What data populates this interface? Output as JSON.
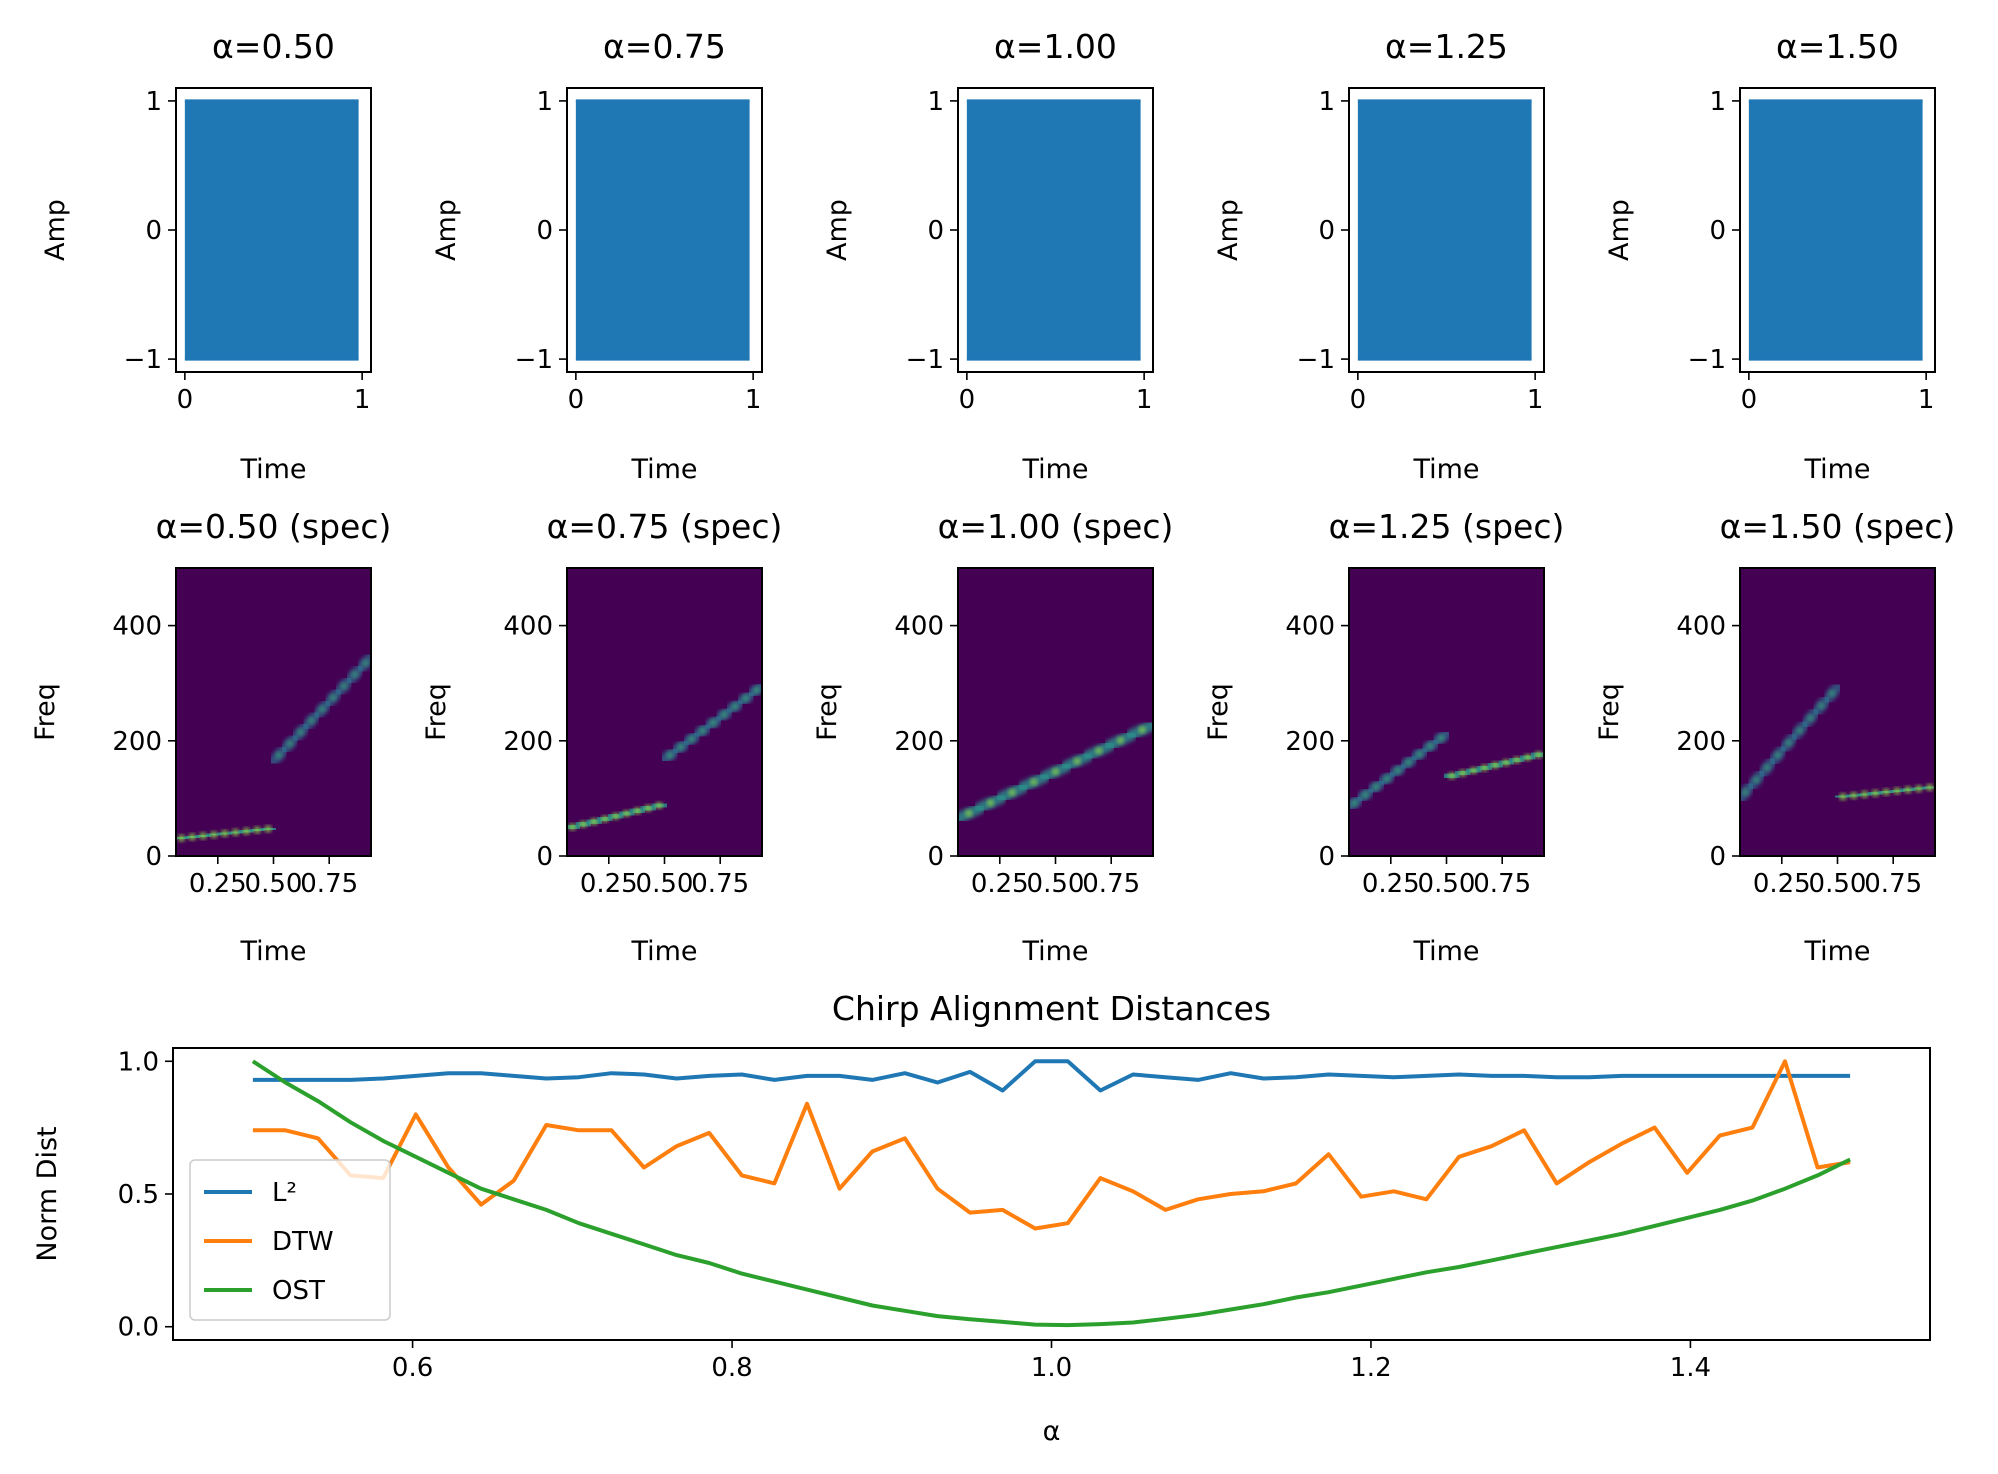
{
  "colors": {
    "l2": "#1f77b4",
    "dtw": "#ff7f0e",
    "ost": "#2ca02c",
    "signal": "#1f77b4",
    "spec_bg": "#440154"
  },
  "chart_data": [
    {
      "type": "area",
      "panel": "signal",
      "title": "α=0.50",
      "xlabel": "Time",
      "ylabel": "Amp",
      "xlim": [
        -0.05,
        1.05
      ],
      "ylim": [
        -1.1,
        1.1
      ],
      "xticks": [
        {
          "v": 0,
          "label": "0"
        },
        {
          "v": 1,
          "label": "1"
        }
      ],
      "yticks": [
        {
          "v": 1,
          "label": "1"
        },
        {
          "v": 0,
          "label": "0"
        },
        {
          "v": -1,
          "label": "−1"
        }
      ],
      "envelope": [
        [
          0.0,
          1
        ],
        [
          0.98,
          1
        ]
      ]
    },
    {
      "type": "area",
      "panel": "signal",
      "title": "α=0.75",
      "xlabel": "Time",
      "ylabel": "Amp",
      "xlim": [
        -0.05,
        1.05
      ],
      "ylim": [
        -1.1,
        1.1
      ],
      "xticks": [
        {
          "v": 0,
          "label": "0"
        },
        {
          "v": 1,
          "label": "1"
        }
      ],
      "yticks": [
        {
          "v": 1,
          "label": "1"
        },
        {
          "v": 0,
          "label": "0"
        },
        {
          "v": -1,
          "label": "−1"
        }
      ],
      "envelope": [
        [
          0.0,
          1
        ],
        [
          0.98,
          1
        ]
      ]
    },
    {
      "type": "area",
      "panel": "signal",
      "title": "α=1.00",
      "xlabel": "Time",
      "ylabel": "Amp",
      "xlim": [
        -0.05,
        1.05
      ],
      "ylim": [
        -1.1,
        1.1
      ],
      "xticks": [
        {
          "v": 0,
          "label": "0"
        },
        {
          "v": 1,
          "label": "1"
        }
      ],
      "yticks": [
        {
          "v": 1,
          "label": "1"
        },
        {
          "v": 0,
          "label": "0"
        },
        {
          "v": -1,
          "label": "−1"
        }
      ],
      "envelope": [
        [
          0.0,
          1
        ],
        [
          0.98,
          1
        ]
      ]
    },
    {
      "type": "area",
      "panel": "signal",
      "title": "α=1.25",
      "xlabel": "Time",
      "ylabel": "Amp",
      "xlim": [
        -0.05,
        1.05
      ],
      "ylim": [
        -1.1,
        1.1
      ],
      "xticks": [
        {
          "v": 0,
          "label": "0"
        },
        {
          "v": 1,
          "label": "1"
        }
      ],
      "yticks": [
        {
          "v": 1,
          "label": "1"
        },
        {
          "v": 0,
          "label": "0"
        },
        {
          "v": -1,
          "label": "−1"
        }
      ],
      "envelope": [
        [
          0.0,
          1
        ],
        [
          0.98,
          1
        ]
      ]
    },
    {
      "type": "area",
      "panel": "signal",
      "title": "α=1.50",
      "xlabel": "Time",
      "ylabel": "Amp",
      "xlim": [
        -0.05,
        1.05
      ],
      "ylim": [
        -1.1,
        1.1
      ],
      "xticks": [
        {
          "v": 0,
          "label": "0"
        },
        {
          "v": 1,
          "label": "1"
        }
      ],
      "yticks": [
        {
          "v": 1,
          "label": "1"
        },
        {
          "v": 0,
          "label": "0"
        },
        {
          "v": -1,
          "label": "−1"
        }
      ],
      "envelope": [
        [
          0.0,
          1
        ],
        [
          0.98,
          1
        ]
      ]
    },
    {
      "type": "heatmap",
      "panel": "spectrogram",
      "title": "α=0.50 (spec)",
      "xlabel": "Time",
      "ylabel": "Freq",
      "xlim": [
        0.0625,
        0.9375
      ],
      "ylim": [
        0,
        500
      ],
      "xticks": [
        {
          "v": 0.25,
          "label": "0.25"
        },
        {
          "v": 0.5,
          "label": "0.50"
        },
        {
          "v": 0.75,
          "label": "0.75"
        }
      ],
      "yticks": [
        {
          "v": 400,
          "label": "400"
        },
        {
          "v": 200,
          "label": "200"
        },
        {
          "v": 0,
          "label": "0"
        }
      ],
      "ridges": [
        {
          "t0": 0.0625,
          "f0": 30,
          "t1": 0.5,
          "f1": 48,
          "intensity": 0.9
        },
        {
          "t0": 0.5,
          "f0": 165,
          "t1": 0.9375,
          "f1": 345,
          "intensity": 0.35
        }
      ]
    },
    {
      "type": "heatmap",
      "panel": "spectrogram",
      "title": "α=0.75 (spec)",
      "xlabel": "Time",
      "ylabel": "Freq",
      "xlim": [
        0.0625,
        0.9375
      ],
      "ylim": [
        0,
        500
      ],
      "xticks": [
        {
          "v": 0.25,
          "label": "0.25"
        },
        {
          "v": 0.5,
          "label": "0.50"
        },
        {
          "v": 0.75,
          "label": "0.75"
        }
      ],
      "yticks": [
        {
          "v": 400,
          "label": "400"
        },
        {
          "v": 200,
          "label": "200"
        },
        {
          "v": 0,
          "label": "0"
        }
      ],
      "ridges": [
        {
          "t0": 0.0625,
          "f0": 48,
          "t1": 0.5,
          "f1": 90,
          "intensity": 0.85
        },
        {
          "t0": 0.5,
          "f0": 168,
          "t1": 0.9375,
          "f1": 295,
          "intensity": 0.45
        }
      ]
    },
    {
      "type": "heatmap",
      "panel": "spectrogram",
      "title": "α=1.00 (spec)",
      "xlabel": "Time",
      "ylabel": "Freq",
      "xlim": [
        0.0625,
        0.9375
      ],
      "ylim": [
        0,
        500
      ],
      "xticks": [
        {
          "v": 0.25,
          "label": "0.25"
        },
        {
          "v": 0.5,
          "label": "0.50"
        },
        {
          "v": 0.75,
          "label": "0.75"
        }
      ],
      "yticks": [
        {
          "v": 400,
          "label": "400"
        },
        {
          "v": 200,
          "label": "200"
        },
        {
          "v": 0,
          "label": "0"
        }
      ],
      "ridges": [
        {
          "t0": 0.0625,
          "f0": 65,
          "t1": 0.9375,
          "f1": 228,
          "intensity": 0.7
        }
      ]
    },
    {
      "type": "heatmap",
      "panel": "spectrogram",
      "title": "α=1.25 (spec)",
      "xlabel": "Time",
      "ylabel": "Freq",
      "xlim": [
        0.0625,
        0.9375
      ],
      "ylim": [
        0,
        500
      ],
      "xticks": [
        {
          "v": 0.25,
          "label": "0.25"
        },
        {
          "v": 0.5,
          "label": "0.50"
        },
        {
          "v": 0.75,
          "label": "0.75"
        }
      ],
      "yticks": [
        {
          "v": 400,
          "label": "400"
        },
        {
          "v": 200,
          "label": "200"
        },
        {
          "v": 0,
          "label": "0"
        }
      ],
      "ridges": [
        {
          "t0": 0.0625,
          "f0": 85,
          "t1": 0.5,
          "f1": 212,
          "intensity": 0.45
        },
        {
          "t0": 0.5,
          "f0": 137,
          "t1": 0.9375,
          "f1": 178,
          "intensity": 0.85
        }
      ]
    },
    {
      "type": "heatmap",
      "panel": "spectrogram",
      "title": "α=1.50 (spec)",
      "xlabel": "Time",
      "ylabel": "Freq",
      "xlim": [
        0.0625,
        0.9375
      ],
      "ylim": [
        0,
        500
      ],
      "xticks": [
        {
          "v": 0.25,
          "label": "0.25"
        },
        {
          "v": 0.5,
          "label": "0.50"
        },
        {
          "v": 0.75,
          "label": "0.75"
        }
      ],
      "yticks": [
        {
          "v": 400,
          "label": "400"
        },
        {
          "v": 200,
          "label": "200"
        },
        {
          "v": 0,
          "label": "0"
        }
      ],
      "ridges": [
        {
          "t0": 0.0625,
          "f0": 100,
          "t1": 0.5,
          "f1": 293,
          "intensity": 0.35
        },
        {
          "t0": 0.5,
          "f0": 102,
          "t1": 0.9375,
          "f1": 120,
          "intensity": 0.9
        }
      ]
    },
    {
      "type": "line",
      "panel": "distances",
      "title": "Chirp Alignment Distances",
      "xlabel": "α",
      "ylabel": "Norm Dist",
      "xlim": [
        0.45,
        1.55
      ],
      "ylim": [
        -0.05,
        1.05
      ],
      "xticks": [
        {
          "v": 0.6,
          "label": "0.6"
        },
        {
          "v": 0.8,
          "label": "0.8"
        },
        {
          "v": 1.0,
          "label": "1.0"
        },
        {
          "v": 1.2,
          "label": "1.2"
        },
        {
          "v": 1.4,
          "label": "1.4"
        }
      ],
      "yticks": [
        {
          "v": 1.0,
          "label": "1.0"
        },
        {
          "v": 0.5,
          "label": "0.5"
        },
        {
          "v": 0.0,
          "label": "0.0"
        }
      ],
      "legend_position": "lower-left",
      "x": [
        0.5,
        0.5204,
        0.5408,
        0.5612,
        0.5816,
        0.602,
        0.6224,
        0.6429,
        0.6633,
        0.6837,
        0.7041,
        0.7245,
        0.7449,
        0.7653,
        0.7857,
        0.8061,
        0.8265,
        0.8469,
        0.8673,
        0.8878,
        0.9082,
        0.9286,
        0.949,
        0.9694,
        0.9898,
        1.0102,
        1.0306,
        1.051,
        1.0714,
        1.0918,
        1.1122,
        1.1327,
        1.1531,
        1.1735,
        1.1939,
        1.2143,
        1.2347,
        1.2551,
        1.2755,
        1.2959,
        1.3163,
        1.3367,
        1.3571,
        1.3776,
        1.398,
        1.4184,
        1.4388,
        1.4592,
        1.4796,
        1.5
      ],
      "series": [
        {
          "name": "L²",
          "color": "#1f77b4",
          "values": [
            0.93,
            0.93,
            0.93,
            0.93,
            0.935,
            0.945,
            0.955,
            0.955,
            0.945,
            0.935,
            0.94,
            0.955,
            0.95,
            0.935,
            0.945,
            0.95,
            0.93,
            0.945,
            0.945,
            0.93,
            0.955,
            0.92,
            0.96,
            0.89,
            1.0,
            1.0,
            0.89,
            0.95,
            0.94,
            0.93,
            0.955,
            0.935,
            0.94,
            0.95,
            0.945,
            0.94,
            0.945,
            0.95,
            0.945,
            0.945,
            0.94,
            0.94,
            0.945,
            0.945,
            0.945,
            0.945,
            0.945,
            0.945,
            0.945,
            0.945
          ]
        },
        {
          "name": "DTW",
          "color": "#ff7f0e",
          "values": [
            0.74,
            0.74,
            0.71,
            0.57,
            0.56,
            0.8,
            0.6,
            0.46,
            0.55,
            0.76,
            0.74,
            0.74,
            0.6,
            0.68,
            0.73,
            0.57,
            0.54,
            0.84,
            0.52,
            0.66,
            0.71,
            0.52,
            0.43,
            0.44,
            0.37,
            0.39,
            0.56,
            0.51,
            0.44,
            0.48,
            0.5,
            0.51,
            0.54,
            0.65,
            0.49,
            0.51,
            0.48,
            0.64,
            0.68,
            0.74,
            0.54,
            0.62,
            0.69,
            0.75,
            0.58,
            0.72,
            0.75,
            1.0,
            0.6,
            0.62
          ]
        },
        {
          "name": "OST",
          "color": "#2ca02c",
          "values": [
            1.0,
            0.92,
            0.85,
            0.77,
            0.7,
            0.64,
            0.58,
            0.52,
            0.48,
            0.44,
            0.39,
            0.35,
            0.31,
            0.27,
            0.24,
            0.2,
            0.17,
            0.14,
            0.11,
            0.08,
            0.06,
            0.04,
            0.028,
            0.018,
            0.008,
            0.006,
            0.01,
            0.016,
            0.03,
            0.045,
            0.065,
            0.085,
            0.11,
            0.13,
            0.155,
            0.18,
            0.205,
            0.225,
            0.25,
            0.275,
            0.3,
            0.325,
            0.35,
            0.38,
            0.41,
            0.44,
            0.475,
            0.52,
            0.57,
            0.63
          ]
        }
      ]
    }
  ]
}
